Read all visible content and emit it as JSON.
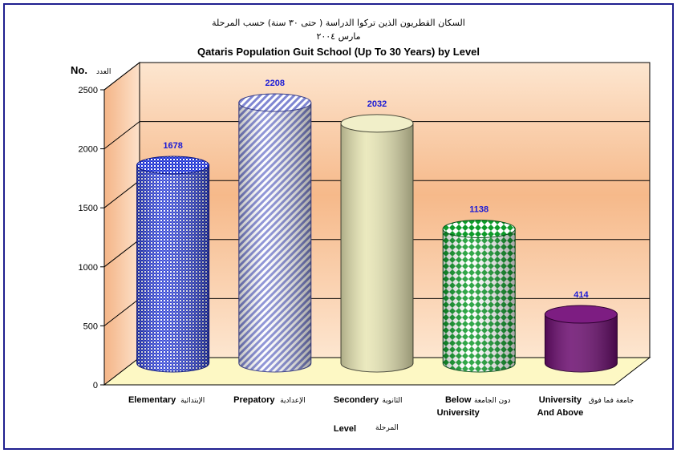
{
  "chart_data": {
    "type": "bar",
    "title_ar": "السكان القطريون الذين تركوا الدراسة ( حتى ٣٠ سنة) حسب المرحلة",
    "subtitle_ar": "مارس ٢٠٠٤",
    "title": "Qataris Population Guit School (Up To 30 Years) by Level",
    "subtitle": "March 2004",
    "ylabel": "No.",
    "ylabel_ar": "العدد",
    "xlabel": "Level",
    "xlabel_ar": "المرحلة",
    "ylim": [
      0,
      2500
    ],
    "yticks": [
      "0",
      "500",
      "1000",
      "1500",
      "2000",
      "2500"
    ],
    "categories": [
      {
        "en": "Elementary",
        "en2": "",
        "ar": "الإبتدائية"
      },
      {
        "en": "Prepatory",
        "en2": "",
        "ar": "الإعدادية"
      },
      {
        "en": "Secondery",
        "en2": "",
        "ar": "الثانوية"
      },
      {
        "en": "Below",
        "en2": "University",
        "ar": "دون الجامعة"
      },
      {
        "en": "University",
        "en2": "And Above",
        "ar": "جامعة فما فوق"
      }
    ],
    "values": [
      1678,
      2208,
      2032,
      1138,
      414
    ],
    "value_labels": [
      "1678",
      "2208",
      "2032",
      "1138",
      "414"
    ],
    "colors": {
      "elementary": "#1c2fd0",
      "prepatory": "#8e95d8",
      "secondery": "#e8e6b4",
      "below_university": "#0e9b2a",
      "university_above": "#6a0b6e",
      "data_label": "#1a1ad6",
      "frame": "#1f1f8f"
    },
    "grid": true,
    "legend": "none"
  }
}
